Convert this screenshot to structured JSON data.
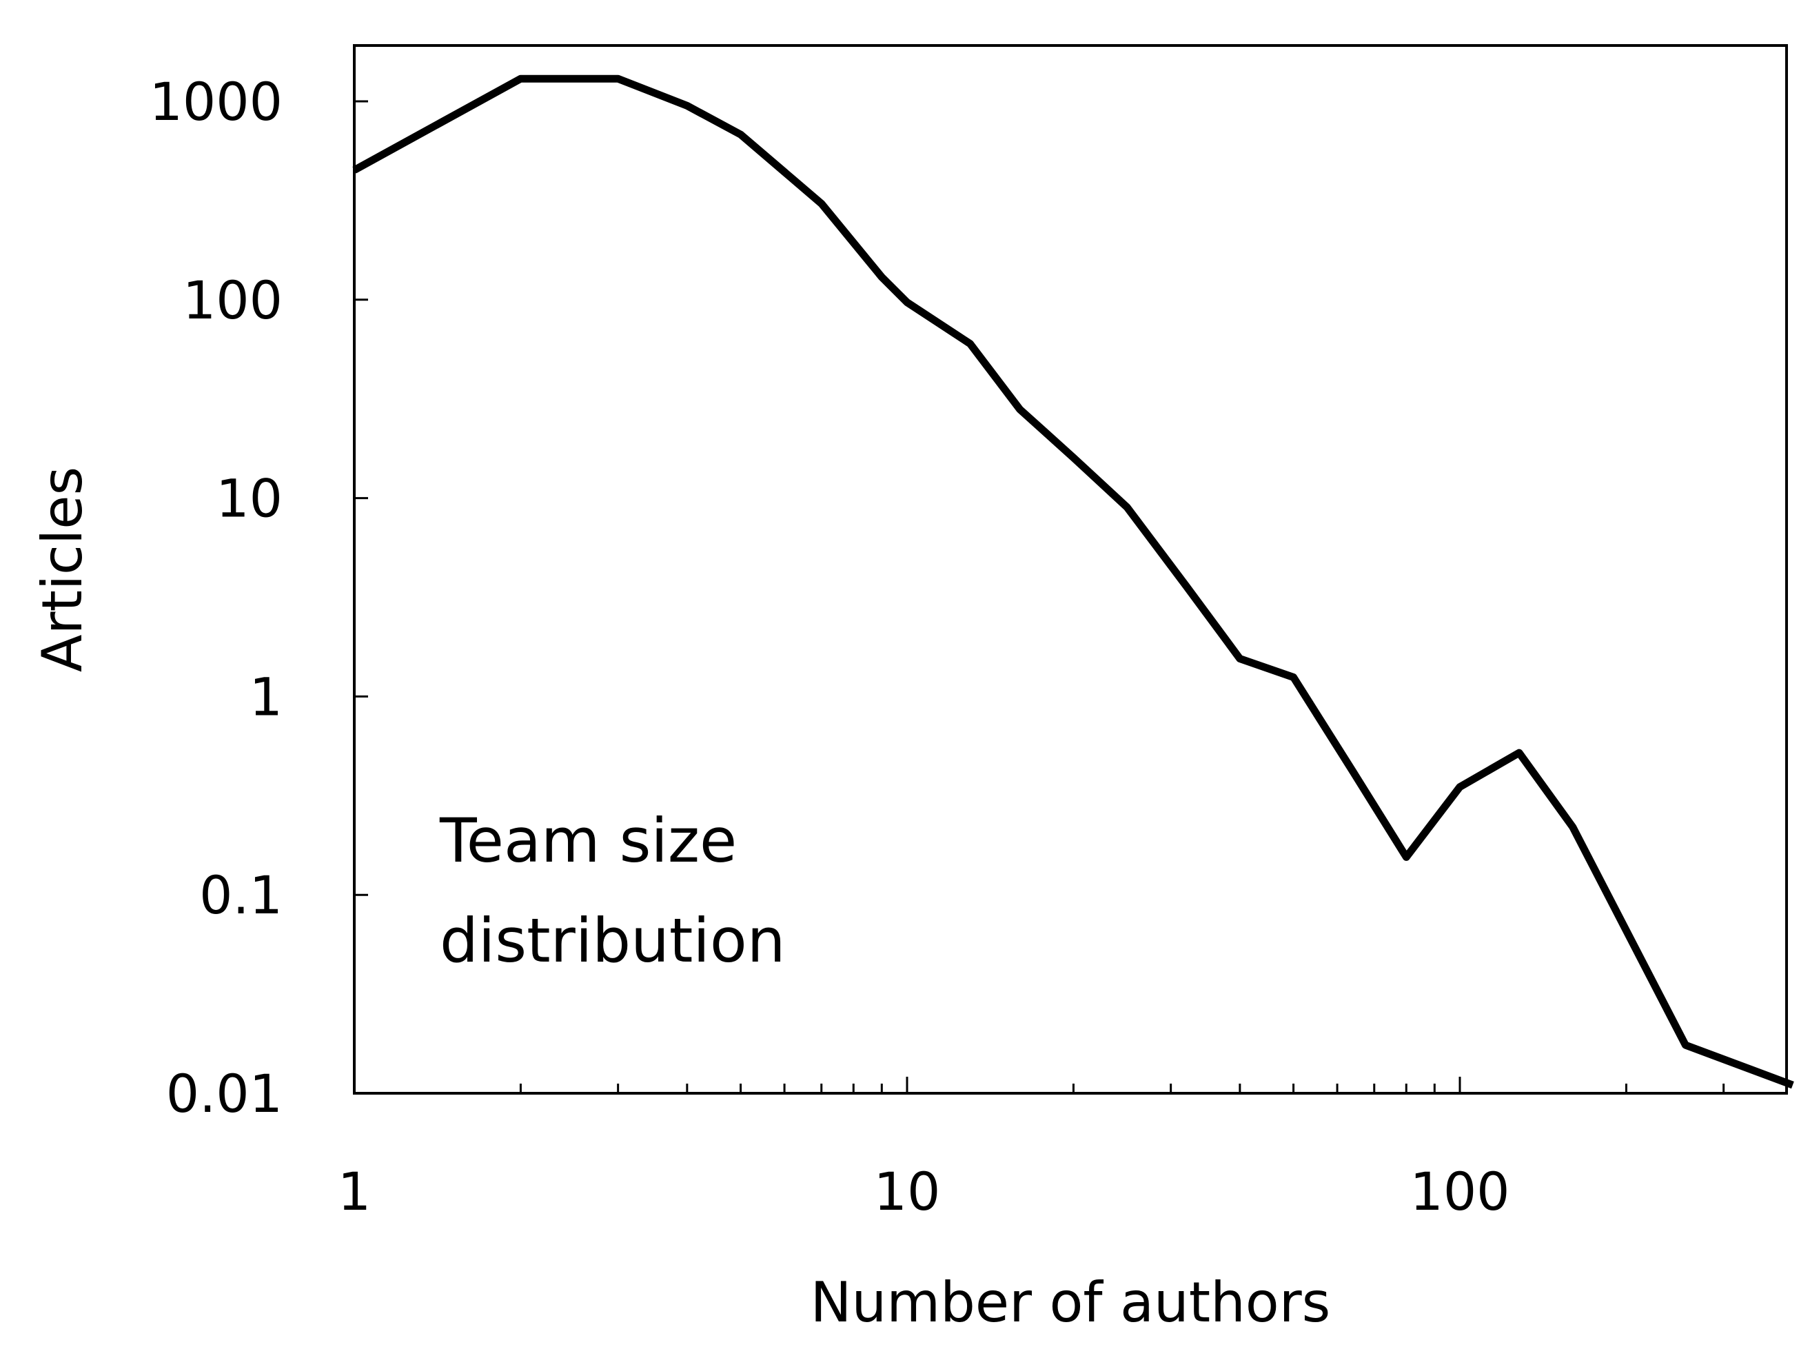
{
  "chart_data": {
    "type": "line",
    "title": "",
    "xlabel": "Number of authors",
    "ylabel": "Articles",
    "xscale": "log",
    "yscale": "log",
    "xlim": [
      1,
      400
    ],
    "ylim": [
      0.01,
      3000
    ],
    "xticks": [
      1,
      10,
      100
    ],
    "xtick_labels": [
      "1",
      "10",
      "100"
    ],
    "yticks": [
      0.01,
      0.1,
      1,
      10,
      100,
      1000
    ],
    "ytick_labels": [
      "0.01",
      "0.1",
      "1",
      "10",
      "100",
      "1000"
    ],
    "grid": false,
    "legend": "none",
    "annotation": [
      "Team size",
      "distribution"
    ],
    "series": [
      {
        "color": "#000000",
        "x": [
          1,
          2,
          3,
          4,
          5,
          7,
          9,
          10,
          13,
          16,
          20,
          25,
          32,
          40,
          50,
          64,
          80,
          100,
          128,
          160,
          256,
          400
        ],
        "y": [
          450,
          1300,
          1300,
          950,
          680,
          305,
          130,
          97,
          60,
          28,
          16,
          9,
          3.6,
          1.55,
          1.25,
          0.42,
          0.155,
          0.35,
          0.52,
          0.22,
          0.0175,
          0.011
        ]
      }
    ]
  }
}
